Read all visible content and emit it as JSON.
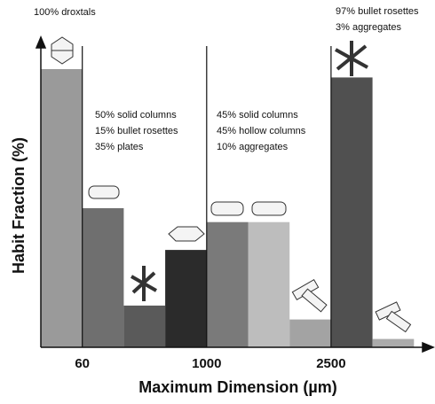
{
  "chart_data": {
    "type": "bar",
    "x_label": "Maximum Dimension (µm)",
    "y_label": "Habit Fraction (%)",
    "categories": [
      null,
      null,
      null,
      null,
      null,
      null,
      null,
      null,
      null
    ],
    "values": [
      100,
      50,
      15,
      35,
      45,
      45,
      10,
      97,
      3
    ],
    "colors": [
      "#9a9a9a",
      "#6f6f6f",
      "#5a5a5a",
      "#2b2b2b",
      "#7a7a7a",
      "#bdbdbd",
      "#a3a3a3",
      "#505050",
      "#ababab"
    ],
    "ylim": [
      0,
      100
    ],
    "xticks": [
      60,
      1000,
      2500
    ],
    "annotations": [
      [
        "100% droxtals"
      ],
      [
        "50% solid columns",
        "15% bullet rosettes",
        "35% plates"
      ],
      [
        "45% solid columns",
        "45% hollow columns",
        "10% aggregates"
      ],
      [
        "97% bullet rosettes",
        "3% aggregates"
      ]
    ]
  }
}
